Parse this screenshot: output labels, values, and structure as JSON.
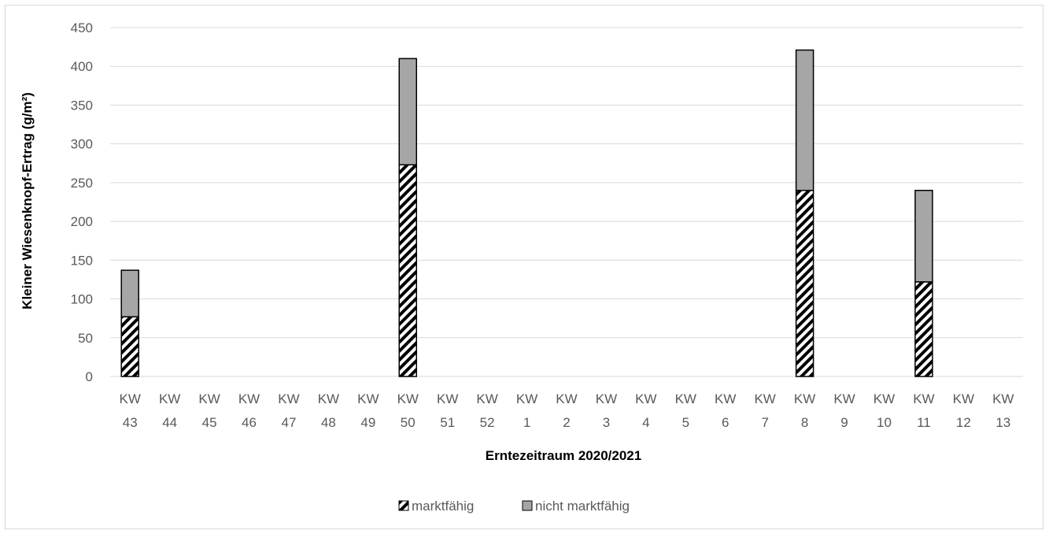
{
  "chart_data": {
    "type": "bar",
    "stacked": true,
    "title": "",
    "xlabel": "Erntezeitraum 2020/2021",
    "ylabel": "Kleiner Wiesenknopf-Ertrag (g/m²)",
    "ylim": [
      0,
      450
    ],
    "yticks": [
      0,
      50,
      100,
      150,
      200,
      250,
      300,
      350,
      400,
      450
    ],
    "grid": "horizontal",
    "legend_position": "bottom",
    "categories": [
      [
        "KW",
        "43"
      ],
      [
        "KW",
        "44"
      ],
      [
        "KW",
        "45"
      ],
      [
        "KW",
        "46"
      ],
      [
        "KW",
        "47"
      ],
      [
        "KW",
        "48"
      ],
      [
        "KW",
        "49"
      ],
      [
        "KW",
        "50"
      ],
      [
        "KW",
        "51"
      ],
      [
        "KW",
        "52"
      ],
      [
        "KW",
        "1"
      ],
      [
        "KW",
        "2"
      ],
      [
        "KW",
        "3"
      ],
      [
        "KW",
        "4"
      ],
      [
        "KW",
        "5"
      ],
      [
        "KW",
        "6"
      ],
      [
        "KW",
        "7"
      ],
      [
        "KW",
        "8"
      ],
      [
        "KW",
        "9"
      ],
      [
        "KW",
        "10"
      ],
      [
        "KW",
        "11"
      ],
      [
        "KW",
        "12"
      ],
      [
        "KW",
        "13"
      ]
    ],
    "series": [
      {
        "name": "marktfähig",
        "pattern": "diagonal-hatch",
        "color": "#000000",
        "values": [
          77,
          0,
          0,
          0,
          0,
          0,
          0,
          273,
          0,
          0,
          0,
          0,
          0,
          0,
          0,
          0,
          0,
          240,
          0,
          0,
          122,
          0,
          0
        ]
      },
      {
        "name": "nicht marktfähig",
        "pattern": "solid",
        "color": "#a6a6a6",
        "values": [
          60,
          0,
          0,
          0,
          0,
          0,
          0,
          137,
          0,
          0,
          0,
          0,
          0,
          0,
          0,
          0,
          0,
          181,
          0,
          0,
          118,
          0,
          0
        ]
      }
    ]
  },
  "colors": {
    "gridline": "#d9d9d9",
    "bar_outline": "#000000",
    "tick_text": "#595959"
  }
}
